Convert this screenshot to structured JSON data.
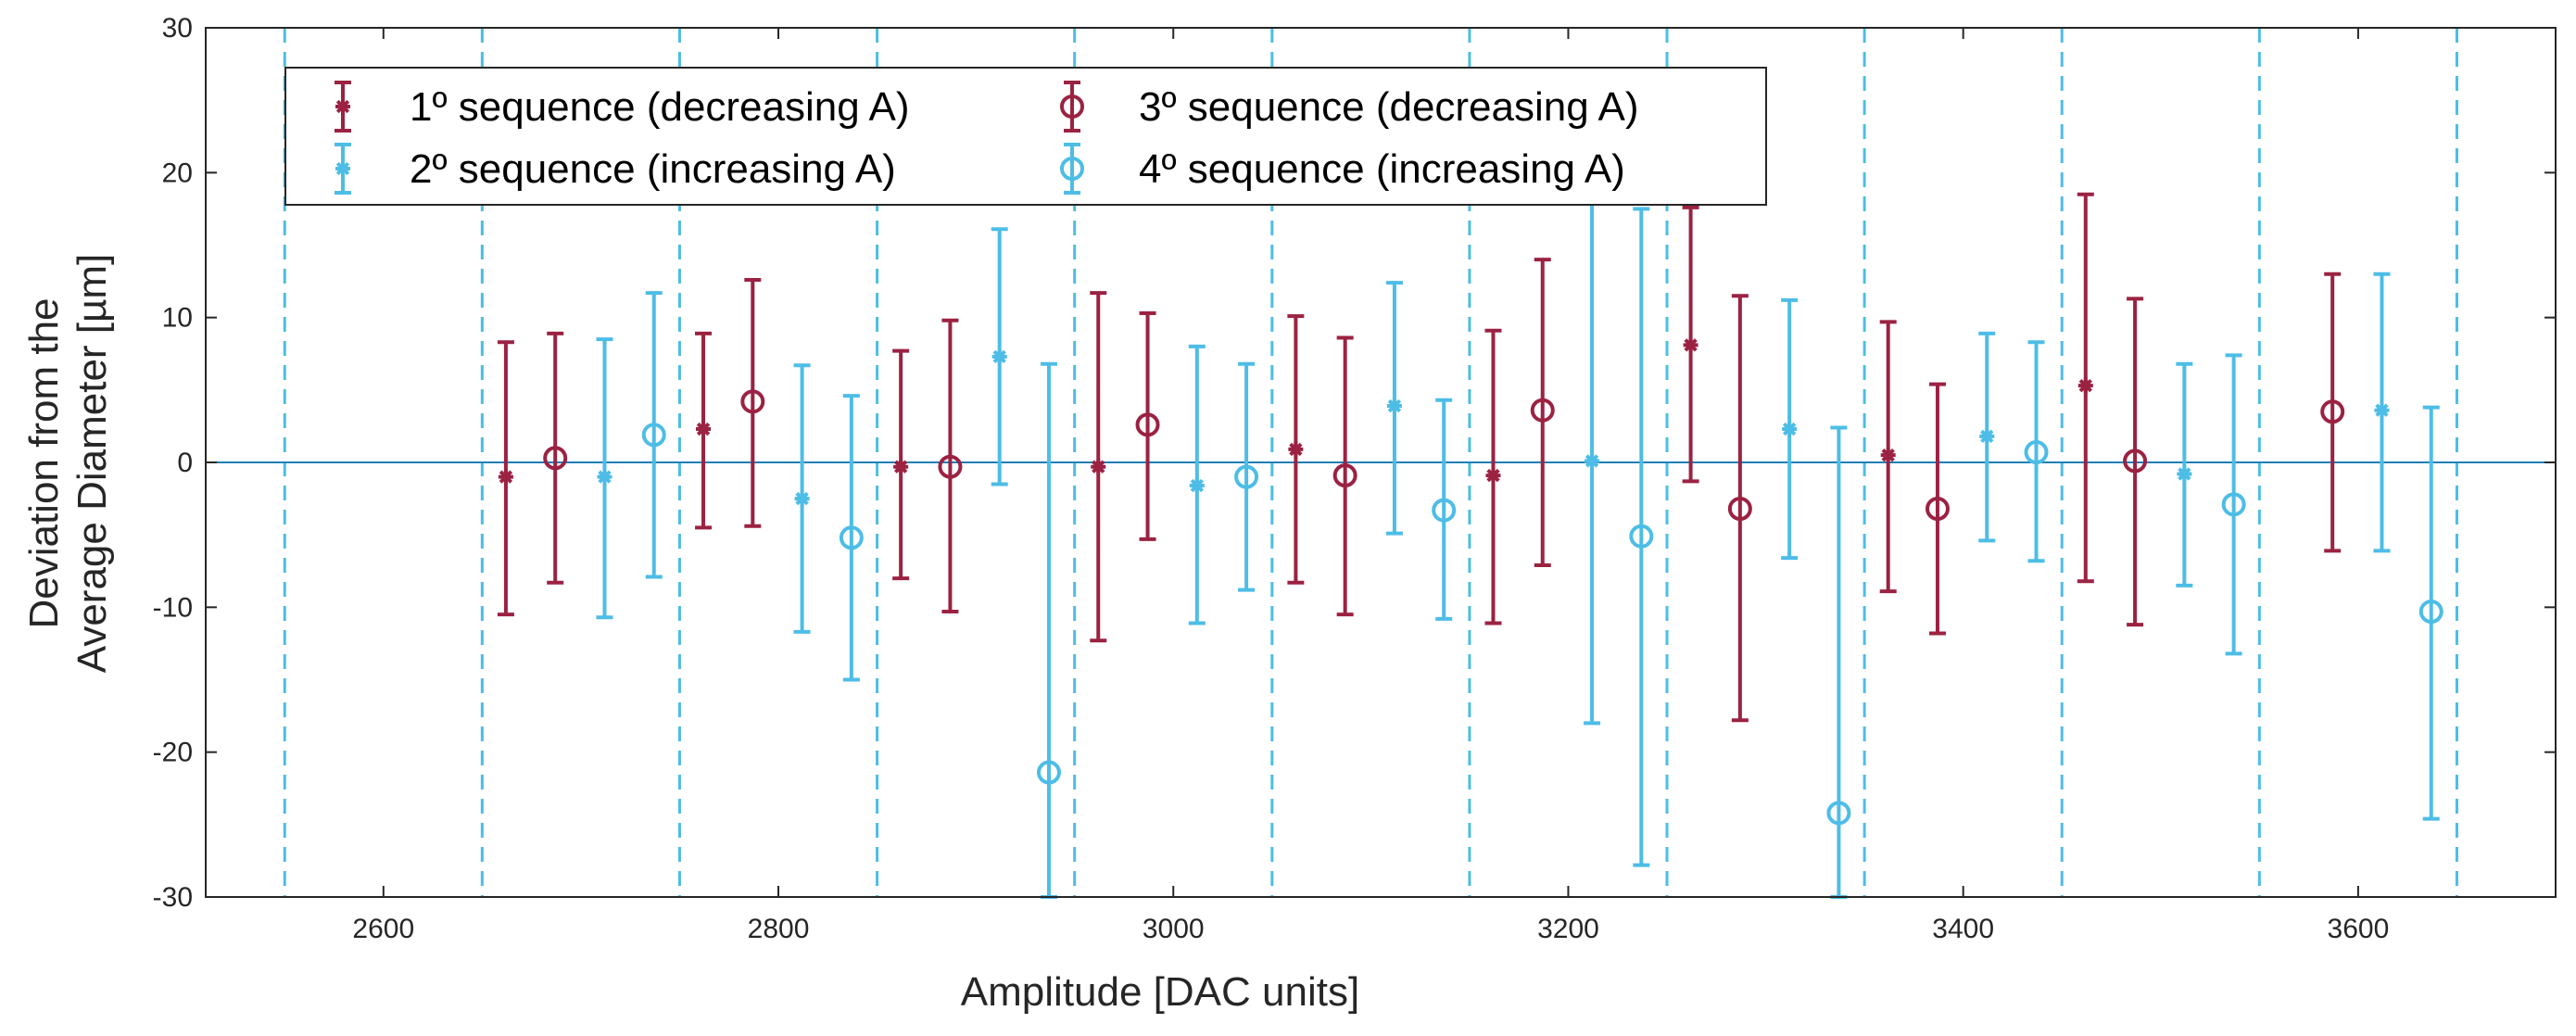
{
  "chart_data": {
    "type": "errorbar",
    "xlabel": "Amplitude [DAC units]",
    "ylabel_line1": "Deviation from the",
    "ylabel_line2": "Average Diameter [µm]",
    "xlim": [
      2510,
      3700
    ],
    "ylim": [
      -30,
      30
    ],
    "xticks": [
      2600,
      2800,
      3000,
      3200,
      3400,
      3600
    ],
    "xtick_labels": [
      "2600",
      "2800",
      "3000",
      "3200",
      "3400",
      "3600"
    ],
    "yticks": [
      -30,
      -20,
      -10,
      0,
      10,
      20,
      30
    ],
    "ytick_labels": [
      "-30",
      "-20",
      "-10",
      "0",
      "10",
      "20",
      "30"
    ],
    "zero_line": 0,
    "vertical_dashed_lines": [
      2550,
      2650,
      2750,
      2850,
      2950,
      3050,
      3150,
      3250,
      3350,
      3450,
      3550,
      3650
    ],
    "colors": {
      "red": "#9b2242",
      "blue": "#4dbde6",
      "axis": "#262626",
      "refline": "#1f7fb4"
    },
    "legend_position": "top-left",
    "series": [
      {
        "name": "1º sequence (decreasing A)",
        "color": "#9b2242",
        "marker": "asterisk",
        "points": [
          {
            "x": 2662,
            "y": -1.0,
            "lo": -10.5,
            "hi": 8.3
          },
          {
            "x": 2762,
            "y": 2.3,
            "lo": -4.5,
            "hi": 8.9
          },
          {
            "x": 2862,
            "y": -0.3,
            "lo": -8.0,
            "hi": 7.7
          },
          {
            "x": 2962,
            "y": -0.3,
            "lo": -12.3,
            "hi": 11.7
          },
          {
            "x": 3062,
            "y": 0.9,
            "lo": -8.3,
            "hi": 10.1
          },
          {
            "x": 3162,
            "y": -0.9,
            "lo": -11.1,
            "hi": 9.1
          },
          {
            "x": 3262,
            "y": 8.1,
            "lo": -1.3,
            "hi": 17.6
          },
          {
            "x": 3362,
            "y": 0.5,
            "lo": -8.9,
            "hi": 9.7
          },
          {
            "x": 3462,
            "y": 5.3,
            "lo": -8.2,
            "hi": 18.5
          }
        ]
      },
      {
        "name": "2º sequence (increasing A)",
        "color": "#4dbde6",
        "marker": "asterisk",
        "points": [
          {
            "x": 2712,
            "y": -1.0,
            "lo": -10.7,
            "hi": 8.5
          },
          {
            "x": 2812,
            "y": -2.5,
            "lo": -11.7,
            "hi": 6.7
          },
          {
            "x": 2912,
            "y": 7.3,
            "lo": -1.5,
            "hi": 16.1
          },
          {
            "x": 3012,
            "y": -1.6,
            "lo": -11.1,
            "hi": 8.0
          },
          {
            "x": 3112,
            "y": 3.9,
            "lo": -4.9,
            "hi": 12.4
          },
          {
            "x": 3212,
            "y": 0.1,
            "lo": -18.0,
            "hi": 18.5
          },
          {
            "x": 3312,
            "y": 2.3,
            "lo": -6.6,
            "hi": 11.2
          },
          {
            "x": 3412,
            "y": 1.8,
            "lo": -5.4,
            "hi": 8.9
          },
          {
            "x": 3512,
            "y": -0.8,
            "lo": -8.5,
            "hi": 6.8
          },
          {
            "x": 3612,
            "y": 3.6,
            "lo": -6.1,
            "hi": 13.0
          }
        ]
      },
      {
        "name": "3º sequence (decreasing A)",
        "color": "#9b2242",
        "marker": "circle",
        "points": [
          {
            "x": 2687,
            "y": 0.3,
            "lo": -8.3,
            "hi": 8.9
          },
          {
            "x": 2787,
            "y": 4.2,
            "lo": -4.4,
            "hi": 12.6
          },
          {
            "x": 2887,
            "y": -0.3,
            "lo": -10.3,
            "hi": 9.8
          },
          {
            "x": 2987,
            "y": 2.6,
            "lo": -5.3,
            "hi": 10.3
          },
          {
            "x": 3087,
            "y": -0.9,
            "lo": -10.5,
            "hi": 8.6
          },
          {
            "x": 3187,
            "y": 3.6,
            "lo": -7.1,
            "hi": 14.0
          },
          {
            "x": 3287,
            "y": -3.2,
            "lo": -17.8,
            "hi": 11.5
          },
          {
            "x": 3387,
            "y": -3.2,
            "lo": -11.8,
            "hi": 5.4
          },
          {
            "x": 3487,
            "y": 0.1,
            "lo": -11.2,
            "hi": 11.3
          },
          {
            "x": 3587,
            "y": 3.5,
            "lo": -6.1,
            "hi": 13.0
          }
        ]
      },
      {
        "name": "4º sequence (increasing A)",
        "color": "#4dbde6",
        "marker": "circle",
        "points": [
          {
            "x": 2737,
            "y": 1.9,
            "lo": -7.9,
            "hi": 11.7
          },
          {
            "x": 2837,
            "y": -5.2,
            "lo": -15.0,
            "hi": 4.6
          },
          {
            "x": 2937,
            "y": -21.4,
            "lo": -30.0,
            "hi": 6.8
          },
          {
            "x": 3037,
            "y": -1.0,
            "lo": -8.8,
            "hi": 6.8
          },
          {
            "x": 3137,
            "y": -3.3,
            "lo": -10.8,
            "hi": 4.3
          },
          {
            "x": 3237,
            "y": -5.1,
            "lo": -27.8,
            "hi": 17.5
          },
          {
            "x": 3337,
            "y": -24.2,
            "lo": -30.0,
            "hi": 2.4
          },
          {
            "x": 3437,
            "y": 0.7,
            "lo": -6.8,
            "hi": 8.3
          },
          {
            "x": 3537,
            "y": -2.9,
            "lo": -13.2,
            "hi": 7.4
          },
          {
            "x": 3637,
            "y": -10.3,
            "lo": -24.6,
            "hi": 3.8
          }
        ]
      }
    ]
  }
}
